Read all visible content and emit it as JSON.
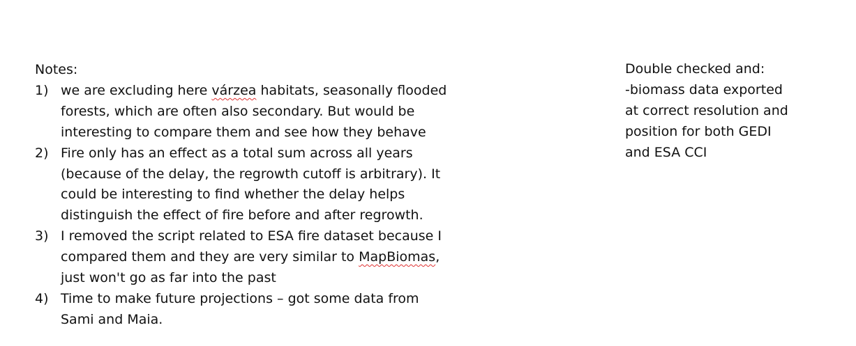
{
  "notes": {
    "heading": "Notes:",
    "items": [
      {
        "number": "1)",
        "lines": [
          {
            "before": "we are excluding here ",
            "flagged": "várzea",
            "after": " habitats, seasonally flooded"
          },
          "forests, which are often also secondary. But would be",
          "interesting to compare them and see how they behave"
        ]
      },
      {
        "number": "2)",
        "lines": [
          "Fire only has an effect as a total sum across all years",
          "(because of the delay, the regrowth cutoff is arbitrary). It",
          "could be interesting to find whether the delay helps",
          "distinguish the effect of fire before and after regrowth."
        ]
      },
      {
        "number": "3)",
        "lines": [
          "I removed the script related to ESA fire dataset because I",
          {
            "before": "compared them and they are very similar to ",
            "flagged": "MapBiomas",
            "after": ","
          },
          "just won't go as far into the past"
        ]
      },
      {
        "number": "4)",
        "lines": [
          "Time to make future projections – got some data from",
          "Sami and Maia."
        ]
      }
    ]
  },
  "side_note": {
    "lines": [
      "Double checked and:",
      "-biomass data exported",
      "at correct resolution and",
      "position for both GEDI",
      "and ESA CCI"
    ]
  },
  "colors": {
    "text": "#111111",
    "spellcheck_underline": "#e03030",
    "background": "#ffffff"
  }
}
